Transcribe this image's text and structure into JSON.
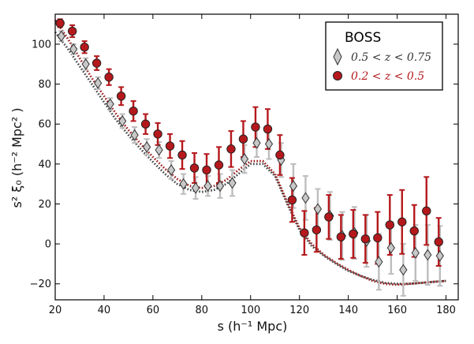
{
  "chart_data": {
    "type": "scatter",
    "xlabel": "s (h⁻¹ Mpc)",
    "ylabel": "s² ξ₀ (h⁻² Mpc² )",
    "xlim": [
      20,
      185
    ],
    "ylim": [
      -28,
      115
    ],
    "x_ticks": [
      20,
      40,
      60,
      80,
      100,
      120,
      140,
      160,
      180
    ],
    "y_ticks": [
      -20,
      0,
      20,
      40,
      60,
      80,
      100
    ],
    "grid": false,
    "legend": {
      "title": "BOSS",
      "placement": "top-right",
      "entries": [
        {
          "label": "0.5 < z < 0.75",
          "marker": "diamond",
          "color": "#c8c8c8",
          "text_color": "#333333"
        },
        {
          "label": "0.2 < z < 0.5",
          "marker": "circle",
          "color": "#b5181c",
          "text_color": "#b5181c"
        }
      ]
    },
    "series": [
      {
        "name": "0.5 < z < 0.75",
        "marker": "diamond",
        "fill": "#c8c8c8",
        "errcolor": "#bdbdbd",
        "x": [
          22.5,
          27.5,
          32.5,
          37.5,
          42.5,
          47.5,
          52.5,
          57.5,
          62.5,
          67.5,
          72.5,
          77.5,
          82.5,
          87.5,
          92.5,
          97.5,
          102.5,
          107.5,
          112.5,
          117.5,
          122.5,
          127.5,
          132.5,
          137.5,
          142.5,
          147.5,
          152.5,
          157.5,
          162.5,
          167.5,
          172.5,
          177.5
        ],
        "y": [
          104,
          97.5,
          90,
          80.5,
          70,
          61.5,
          54.5,
          48.5,
          47,
          37,
          30,
          28,
          29,
          29,
          30.5,
          42.5,
          50.5,
          50,
          42,
          29,
          23,
          17.5,
          14,
          4,
          5.5,
          1.5,
          -9,
          -2,
          -13,
          -4.5,
          -5.5,
          -6
        ],
        "err": [
          2.5,
          2.5,
          3,
          3,
          3,
          3.5,
          4,
          4,
          4,
          4.5,
          5,
          5.5,
          5,
          6,
          6.5,
          7,
          7,
          7.5,
          8.5,
          11,
          11,
          10,
          12,
          12,
          13,
          13,
          14,
          13,
          13,
          14,
          15,
          15
        ]
      },
      {
        "name": "0.2 < z < 0.5",
        "marker": "circle",
        "fill": "#b5181c",
        "errcolor": "#b5181c",
        "x": [
          22,
          27,
          32,
          37,
          42,
          47,
          52,
          57,
          62,
          67,
          72,
          77,
          82,
          87,
          92,
          97,
          102,
          107,
          112,
          117,
          122,
          127,
          132,
          137,
          142,
          147,
          152,
          157,
          162,
          167,
          172,
          177
        ],
        "y": [
          110.5,
          106.5,
          98.5,
          90.5,
          83.5,
          74,
          66.5,
          60,
          55,
          49,
          44.5,
          38,
          37,
          39.5,
          47.5,
          52.5,
          58.5,
          57.5,
          44.5,
          22,
          5.5,
          7,
          13.5,
          3.5,
          5,
          2.5,
          3,
          9.5,
          11,
          6.5,
          16.5,
          1
        ],
        "err": [
          2,
          3,
          3,
          3.5,
          4,
          4.5,
          5,
          5,
          5.5,
          6,
          7,
          7.5,
          8,
          9,
          9,
          9,
          10,
          10,
          10,
          11,
          11,
          11,
          11,
          11,
          12,
          12,
          13,
          15,
          16,
          13,
          17,
          12
        ]
      }
    ],
    "model_curves": [
      {
        "color": "#444444",
        "x": [
          20,
          25,
          30,
          35,
          40,
          45,
          50,
          55,
          60,
          65,
          70,
          75,
          80,
          85,
          90,
          95,
          100,
          105,
          110,
          115,
          120,
          125,
          130,
          135,
          140,
          145,
          150,
          155,
          160,
          165,
          170,
          175,
          180
        ],
        "y": [
          106,
          98,
          89,
          80,
          71,
          62,
          54.5,
          47.5,
          41,
          35,
          30,
          27,
          26,
          27,
          30,
          35,
          40,
          40,
          34,
          20,
          7,
          -1,
          -6,
          -10,
          -13.5,
          -16,
          -18,
          -19.5,
          -20,
          -20,
          -19.5,
          -19,
          -18.5
        ]
      },
      {
        "color": "#9b1b1b",
        "x": [
          20,
          25,
          30,
          35,
          40,
          45,
          50,
          55,
          60,
          65,
          70,
          75,
          80,
          85,
          90,
          95,
          100,
          105,
          110,
          115,
          120,
          125,
          130,
          135,
          140,
          145,
          150,
          155,
          160,
          165,
          170,
          175,
          180
        ],
        "y": [
          112,
          103,
          93,
          83,
          74,
          65,
          57,
          50,
          43.5,
          37.5,
          32.5,
          29,
          28,
          29,
          32,
          37,
          41.5,
          41.5,
          35,
          21,
          8,
          0,
          -5.5,
          -9.5,
          -13,
          -16,
          -18.5,
          -20,
          -20.5,
          -20,
          -19.5,
          -19,
          -18.5
        ]
      }
    ]
  }
}
